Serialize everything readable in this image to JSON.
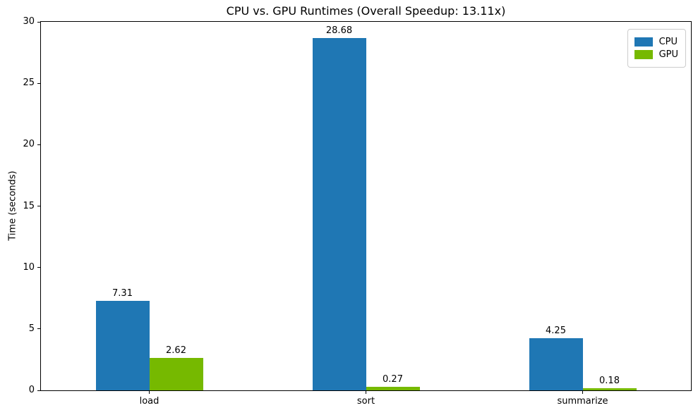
{
  "chart_data": {
    "type": "bar",
    "title": "CPU vs. GPU Runtimes (Overall Speedup: 13.11x)",
    "xlabel": "",
    "ylabel": "Time (seconds)",
    "categories": [
      "load",
      "sort",
      "summarize"
    ],
    "series": [
      {
        "name": "CPU",
        "color": "#1f77b4",
        "values": [
          7.31,
          28.68,
          4.25
        ],
        "labels": [
          "7.31",
          "28.68",
          "4.25"
        ]
      },
      {
        "name": "GPU",
        "color": "#76b900",
        "values": [
          2.62,
          0.27,
          0.18
        ],
        "labels": [
          "2.62",
          "0.27",
          "0.18"
        ]
      }
    ],
    "ylim": [
      0,
      30
    ],
    "yticks": [
      0,
      5,
      10,
      15,
      20,
      25,
      30
    ],
    "grid": false,
    "legend_position": "upper right",
    "background_color": "#ffffff",
    "axis_color": "#000000"
  }
}
